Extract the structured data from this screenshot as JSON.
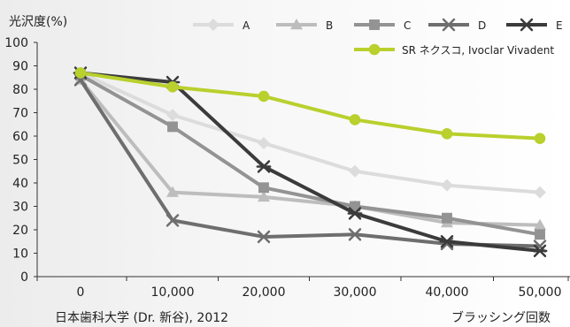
{
  "chart_data": {
    "type": "line",
    "ylabel": "光沢度(%)",
    "xlabel": "ブラッシング回数",
    "source_note": "日本歯科大学 (Dr. 新谷), 2012",
    "x": [
      0,
      10000,
      20000,
      30000,
      40000,
      50000
    ],
    "x_tick_labels": [
      "0",
      "10,000",
      "20,000",
      "30,000",
      "40,000",
      "50,000"
    ],
    "ylim": [
      0,
      100
    ],
    "y_ticks": [
      0,
      10,
      20,
      30,
      40,
      50,
      60,
      70,
      80,
      90,
      100
    ],
    "series": [
      {
        "name": "A",
        "color": "#dcdcdc",
        "marker": "diamond",
        "values": [
          87,
          69,
          57,
          45,
          39,
          36
        ]
      },
      {
        "name": "B",
        "color": "#bdbdbd",
        "marker": "triangle",
        "values": [
          84,
          36,
          34,
          30,
          23,
          22
        ]
      },
      {
        "name": "C",
        "color": "#939393",
        "marker": "square",
        "values": [
          86,
          64,
          38,
          30,
          25,
          18
        ]
      },
      {
        "name": "D",
        "color": "#6e6e6e",
        "marker": "x",
        "values": [
          84,
          24,
          17,
          18,
          14,
          13
        ]
      },
      {
        "name": "E",
        "color": "#3b3b3b",
        "marker": "star",
        "values": [
          87,
          83,
          47,
          27,
          15,
          11
        ]
      },
      {
        "name": "SR ネクスコ, Ivoclar Vivadent",
        "color": "#b9d02d",
        "marker": "circle",
        "values": [
          87,
          81,
          77,
          67,
          61,
          59
        ]
      }
    ]
  }
}
